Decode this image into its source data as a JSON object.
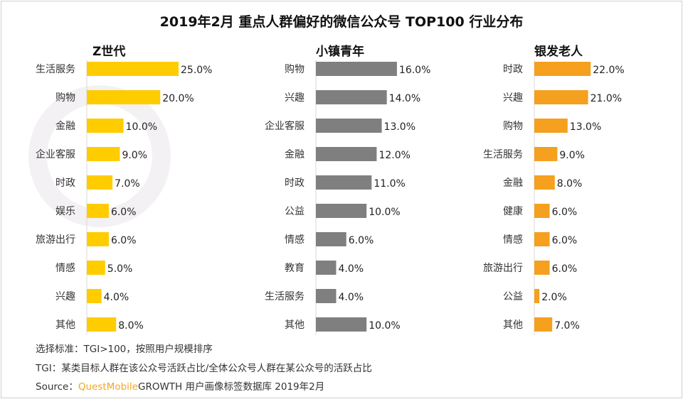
{
  "title": "2019年2月 重点人群偏好的微信公众号 TOP100 行业分布",
  "watermark": "QUESTMOBILE",
  "chart_data": [
    {
      "type": "bar",
      "orientation": "horizontal",
      "title": "Z世代",
      "color": "#FFCC00",
      "categories": [
        "生活服务",
        "购物",
        "金融",
        "企业客服",
        "时政",
        "娱乐",
        "旅游出行",
        "情感",
        "兴趣",
        "其他"
      ],
      "values": [
        25.0,
        20.0,
        10.0,
        9.0,
        7.0,
        6.0,
        6.0,
        5.0,
        4.0,
        8.0
      ],
      "labels": [
        "25.0%",
        "20.0%",
        "10.0%",
        "9.0%",
        "7.0%",
        "6.0%",
        "6.0%",
        "5.0%",
        "4.0%",
        "8.0%"
      ]
    },
    {
      "type": "bar",
      "orientation": "horizontal",
      "title": "小镇青年",
      "color": "#7F7F7F",
      "categories": [
        "购物",
        "兴趣",
        "企业客服",
        "金融",
        "时政",
        "公益",
        "情感",
        "教育",
        "生活服务",
        "其他"
      ],
      "values": [
        16.0,
        14.0,
        13.0,
        12.0,
        11.0,
        10.0,
        6.0,
        4.0,
        4.0,
        10.0
      ],
      "labels": [
        "16.0%",
        "14.0%",
        "13.0%",
        "12.0%",
        "11.0%",
        "10.0%",
        "6.0%",
        "4.0%",
        "4.0%",
        "10.0%"
      ]
    },
    {
      "type": "bar",
      "orientation": "horizontal",
      "title": "银发老人",
      "color": "#F5A01E",
      "categories": [
        "时政",
        "兴趣",
        "购物",
        "生活服务",
        "金融",
        "健康",
        "情感",
        "旅游出行",
        "公益",
        "其他"
      ],
      "values": [
        22.0,
        21.0,
        13.0,
        9.0,
        8.0,
        6.0,
        6.0,
        6.0,
        2.0,
        7.0
      ],
      "labels": [
        "22.0%",
        "21.0%",
        "13.0%",
        "9.0%",
        "8.0%",
        "6.0%",
        "6.0%",
        "6.0%",
        "2.0%",
        "7.0%"
      ]
    }
  ],
  "footer": {
    "criteria": "选择标准：TGI>100，按照用户规模排序",
    "tgi": "TGI：某类目标人群在该公众号活跃占比/全体公众号人群在某公众号的活跃占比",
    "source_prefix": "Source：",
    "source_brand": "QuestMobile",
    "source_rest": "GROWTH 用户画像标签数据库  2019年2月"
  }
}
